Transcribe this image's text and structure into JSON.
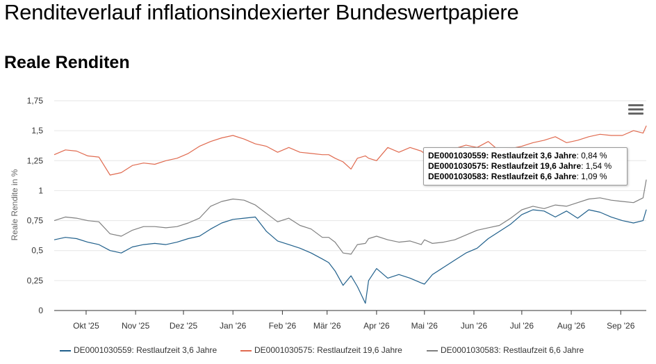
{
  "page": {
    "title": "Renditeverlauf inflationsindexierter Bundeswertpapiere",
    "section_title": "Reale Renditen"
  },
  "colors": {
    "series_1": "#1f5f8b",
    "series_2": "#e06a4f",
    "series_3": "#7f7f7f",
    "grid": "#e6e6e6",
    "axis": "#333333"
  },
  "menu": {
    "icon": "hamburger-menu-icon"
  },
  "tooltip": {
    "rows": [
      {
        "label": "DE0001030559: Restlaufzeit 3,6 Jahre",
        "value": ": 0,84 %"
      },
      {
        "label": "DE0001030575: Restlaufzeit 19,6 Jahre",
        "value": ": 1,54 %"
      },
      {
        "label": "DE0001030583: Restlaufzeit 6,6 Jahre",
        "value": ": 1,09 %"
      }
    ]
  },
  "chart_data": {
    "type": "line",
    "ylabel": "Reale Rendite in %",
    "xlabel": "",
    "ylim": [
      0,
      1.75
    ],
    "y_ticks": [
      "0",
      "0,25",
      "0,5",
      "0,75",
      "1",
      "1,25",
      "1,5",
      "1,75"
    ],
    "x_tick_labels": [
      "Okt '25",
      "Nov '25",
      "Dez '25",
      "Jan '26",
      "Feb '26",
      "Mär '26",
      "Apr '26",
      "Mai '26",
      "Jun '26",
      "Jul '26",
      "Aug '26",
      "Sep '26"
    ],
    "x_ticks": [
      "2025-10-01",
      "2025-11-01",
      "2025-12-01",
      "2026-01-01",
      "2026-02-01",
      "2026-03-01",
      "2026-04-01",
      "2026-05-01",
      "2026-06-01",
      "2026-07-01",
      "2026-08-01",
      "2026-09-01"
    ],
    "x_range": [
      "2025-09-11",
      "2026-09-17"
    ],
    "grid": "horizontal",
    "legend_position": "bottom",
    "series": [
      {
        "name": "DE0001030559: Restlaufzeit 3,6 Jahre",
        "color": "#1f5f8b",
        "x": [
          "2025-09-11",
          "2025-09-18",
          "2025-09-25",
          "2025-10-02",
          "2025-10-09",
          "2025-10-16",
          "2025-10-23",
          "2025-10-30",
          "2025-11-06",
          "2025-11-13",
          "2025-11-20",
          "2025-11-27",
          "2025-12-04",
          "2025-12-11",
          "2025-12-18",
          "2025-12-25",
          "2026-01-01",
          "2026-01-08",
          "2026-01-15",
          "2026-01-22",
          "2026-01-29",
          "2026-02-05",
          "2026-02-12",
          "2026-02-19",
          "2026-02-26",
          "2026-03-02",
          "2026-03-06",
          "2026-03-11",
          "2026-03-16",
          "2026-03-20",
          "2026-03-25",
          "2026-03-27",
          "2026-04-01",
          "2026-04-08",
          "2026-04-15",
          "2026-04-22",
          "2026-04-29",
          "2026-05-01",
          "2026-05-06",
          "2026-05-13",
          "2026-05-20",
          "2026-05-27",
          "2026-06-03",
          "2026-06-10",
          "2026-06-17",
          "2026-06-24",
          "2026-07-01",
          "2026-07-08",
          "2026-07-15",
          "2026-07-22",
          "2026-07-29",
          "2026-08-05",
          "2026-08-12",
          "2026-08-19",
          "2026-08-26",
          "2026-09-02",
          "2026-09-09",
          "2026-09-15",
          "2026-09-17"
        ],
        "values": [
          0.59,
          0.61,
          0.6,
          0.57,
          0.55,
          0.5,
          0.48,
          0.53,
          0.55,
          0.56,
          0.55,
          0.57,
          0.6,
          0.62,
          0.68,
          0.73,
          0.76,
          0.77,
          0.78,
          0.66,
          0.58,
          0.55,
          0.52,
          0.48,
          0.43,
          0.4,
          0.33,
          0.21,
          0.29,
          0.2,
          0.06,
          0.25,
          0.35,
          0.27,
          0.3,
          0.27,
          0.23,
          0.22,
          0.3,
          0.36,
          0.42,
          0.48,
          0.52,
          0.6,
          0.66,
          0.72,
          0.8,
          0.84,
          0.83,
          0.78,
          0.83,
          0.77,
          0.84,
          0.82,
          0.78,
          0.75,
          0.73,
          0.75,
          0.84
        ]
      },
      {
        "name": "DE0001030575: Restlaufzeit 19,6 Jahre",
        "color": "#e06a4f",
        "x": [
          "2025-09-11",
          "2025-09-18",
          "2025-09-25",
          "2025-10-02",
          "2025-10-09",
          "2025-10-16",
          "2025-10-23",
          "2025-10-30",
          "2025-11-06",
          "2025-11-13",
          "2025-11-20",
          "2025-11-27",
          "2025-12-04",
          "2025-12-11",
          "2025-12-18",
          "2025-12-25",
          "2026-01-01",
          "2026-01-08",
          "2026-01-15",
          "2026-01-22",
          "2026-01-29",
          "2026-02-05",
          "2026-02-12",
          "2026-02-19",
          "2026-02-26",
          "2026-03-02",
          "2026-03-06",
          "2026-03-11",
          "2026-03-16",
          "2026-03-20",
          "2026-03-25",
          "2026-03-27",
          "2026-04-01",
          "2026-04-08",
          "2026-04-15",
          "2026-04-22",
          "2026-04-29",
          "2026-05-01",
          "2026-05-06",
          "2026-05-13",
          "2026-05-20",
          "2026-05-27",
          "2026-06-03",
          "2026-06-10",
          "2026-06-17",
          "2026-06-24",
          "2026-07-01",
          "2026-07-08",
          "2026-07-15",
          "2026-07-22",
          "2026-07-29",
          "2026-08-05",
          "2026-08-12",
          "2026-08-19",
          "2026-08-26",
          "2026-09-02",
          "2026-09-09",
          "2026-09-15",
          "2026-09-17"
        ],
        "values": [
          1.3,
          1.34,
          1.33,
          1.29,
          1.28,
          1.13,
          1.15,
          1.21,
          1.23,
          1.22,
          1.25,
          1.27,
          1.31,
          1.37,
          1.41,
          1.44,
          1.46,
          1.43,
          1.39,
          1.37,
          1.32,
          1.36,
          1.32,
          1.31,
          1.3,
          1.3,
          1.27,
          1.24,
          1.18,
          1.27,
          1.29,
          1.27,
          1.25,
          1.36,
          1.32,
          1.36,
          1.33,
          1.31,
          1.33,
          1.32,
          1.35,
          1.38,
          1.36,
          1.41,
          1.33,
          1.35,
          1.37,
          1.4,
          1.42,
          1.45,
          1.4,
          1.42,
          1.45,
          1.47,
          1.46,
          1.46,
          1.5,
          1.48,
          1.54
        ]
      },
      {
        "name": "DE0001030583: Restlaufzeit 6,6 Jahre",
        "color": "#7f7f7f",
        "x": [
          "2025-09-11",
          "2025-09-18",
          "2025-09-25",
          "2025-10-02",
          "2025-10-09",
          "2025-10-16",
          "2025-10-23",
          "2025-10-30",
          "2025-11-06",
          "2025-11-13",
          "2025-11-20",
          "2025-11-27",
          "2025-12-04",
          "2025-12-11",
          "2025-12-18",
          "2025-12-25",
          "2026-01-01",
          "2026-01-08",
          "2026-01-15",
          "2026-01-22",
          "2026-01-29",
          "2026-02-05",
          "2026-02-12",
          "2026-02-19",
          "2026-02-26",
          "2026-03-02",
          "2026-03-06",
          "2026-03-11",
          "2026-03-16",
          "2026-03-20",
          "2026-03-25",
          "2026-03-27",
          "2026-04-01",
          "2026-04-08",
          "2026-04-15",
          "2026-04-22",
          "2026-04-29",
          "2026-05-01",
          "2026-05-06",
          "2026-05-13",
          "2026-05-20",
          "2026-05-27",
          "2026-06-03",
          "2026-06-10",
          "2026-06-17",
          "2026-06-24",
          "2026-07-01",
          "2026-07-08",
          "2026-07-15",
          "2026-07-22",
          "2026-07-29",
          "2026-08-05",
          "2026-08-12",
          "2026-08-19",
          "2026-08-26",
          "2026-09-02",
          "2026-09-09",
          "2026-09-15",
          "2026-09-17"
        ],
        "values": [
          0.75,
          0.78,
          0.77,
          0.75,
          0.74,
          0.64,
          0.62,
          0.67,
          0.7,
          0.7,
          0.69,
          0.7,
          0.73,
          0.77,
          0.87,
          0.91,
          0.93,
          0.92,
          0.88,
          0.81,
          0.74,
          0.77,
          0.71,
          0.68,
          0.61,
          0.61,
          0.57,
          0.48,
          0.47,
          0.55,
          0.56,
          0.6,
          0.62,
          0.59,
          0.57,
          0.58,
          0.55,
          0.59,
          0.56,
          0.57,
          0.59,
          0.63,
          0.67,
          0.69,
          0.71,
          0.77,
          0.84,
          0.87,
          0.85,
          0.88,
          0.87,
          0.9,
          0.93,
          0.94,
          0.92,
          0.91,
          0.9,
          0.94,
          1.09
        ]
      }
    ]
  }
}
